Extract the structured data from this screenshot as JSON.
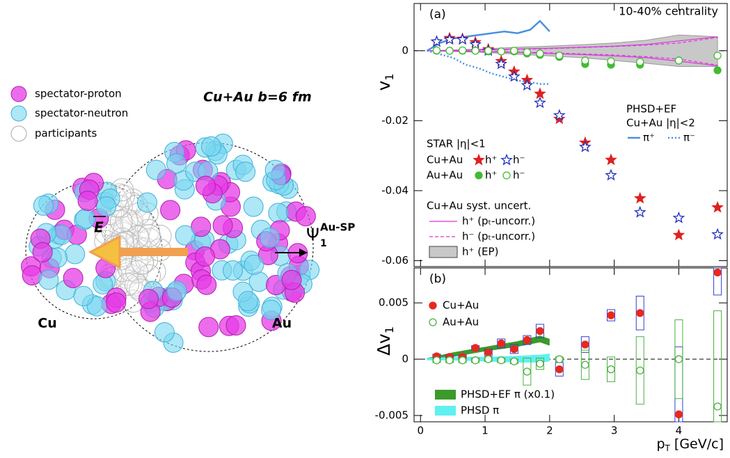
{
  "diagram": {
    "legend": [
      "spectator-proton",
      "spectator-neutron",
      "participants"
    ],
    "system": "Cu+Au  b=6 fm",
    "nuclei": [
      "Cu",
      "Au"
    ],
    "field": "E",
    "plane": [
      "Ψ",
      "1",
      "Au-SP"
    ]
  },
  "chart_data": [
    {
      "type": "scatter",
      "label": "(a)",
      "annotation": "10-40% centrality",
      "ylabel": [
        "v",
        "1"
      ],
      "xlim": [
        -0.1,
        4.75
      ],
      "ylim": [
        -0.0617,
        0.0135
      ],
      "xticks": [
        0,
        1,
        2,
        3,
        4
      ],
      "yticks": [
        -0.06,
        -0.04,
        -0.02,
        0
      ],
      "star": {
        "title": "STAR |η|<1",
        "x": [
          0.25,
          0.45,
          0.65,
          0.85,
          1.05,
          1.25,
          1.45,
          1.65,
          1.85,
          2.15,
          2.55,
          2.95,
          3.4,
          4.0,
          4.6
        ],
        "groups": [
          {
            "name": "Cu+Au",
            "series": [
              {
                "name": "h⁺",
                "color": "#e02020",
                "marker": "filled-star",
                "values": [
                  0.0026,
                  0.0036,
                  0.0034,
                  0.0024,
                  0.0004,
                  -0.003,
                  -0.006,
                  -0.0084,
                  -0.0123,
                  -0.0195,
                  -0.0263,
                  -0.0312,
                  -0.0422,
                  -0.0527,
                  -0.0448
                ]
              },
              {
                "name": "h⁻",
                "color": "#2030c0",
                "marker": "open-star",
                "values": [
                  0.0026,
                  0.0032,
                  0.0032,
                  0.0018,
                  0,
                  -0.0038,
                  -0.0074,
                  -0.0099,
                  -0.0149,
                  -0.0185,
                  -0.0275,
                  -0.0356,
                  -0.0462,
                  -0.0478,
                  -0.0525
                ]
              }
            ]
          },
          {
            "name": "Au+Au",
            "series": [
              {
                "name": "h⁺",
                "color": "#44bb33",
                "marker": "filled-circle",
                "values": [
                  0,
                  0,
                  0,
                  0,
                  -0.0002,
                  -0.0002,
                  -0.0002,
                  -0.0008,
                  -0.0012,
                  -0.0018,
                  -0.0038,
                  -0.004,
                  -0.004,
                  -0.0028,
                  -0.0056
                ]
              },
              {
                "name": "h⁻",
                "color": "#44bb33",
                "marker": "open-circle",
                "values": [
                  0.0001,
                  0,
                  0.0001,
                  0,
                  0,
                  -0.0002,
                  0,
                  -0.0004,
                  -0.0008,
                  -0.0014,
                  -0.0028,
                  -0.003,
                  -0.0032,
                  -0.0028,
                  -0.0014
                ]
              }
            ]
          }
        ]
      },
      "syst": {
        "title": "Cu+Au syst. uncert.",
        "x": [
          0.1,
          0.5,
          1,
          1.5,
          2,
          2.5,
          3,
          3.5,
          4,
          4.6
        ],
        "bands": [
          {
            "name": "h⁺ (pₜ-uncorr.)",
            "style": "solid",
            "color": "#dd33dd",
            "upper": [
              0,
              0.0001,
              0.0003,
              0.0005,
              0.0007,
              0.001,
              0.0013,
              0.0018,
              0.0028,
              0.004
            ],
            "lower": [
              0,
              -0.0001,
              -0.0003,
              -0.0005,
              -0.0008,
              -0.0011,
              -0.0015,
              -0.002,
              -0.003,
              -0.0043
            ]
          },
          {
            "name": "h⁻ (pₜ-uncorr.)",
            "style": "dashed",
            "color": "#dd33dd",
            "upper": [
              0,
              0.0001,
              0.0002,
              0.0004,
              0.0006,
              0.0009,
              0.0012,
              0.0016,
              0.0022,
              0.0038
            ],
            "lower": [
              0,
              -0.0001,
              -0.0002,
              -0.0004,
              -0.0006,
              -0.0009,
              -0.0012,
              -0.0017,
              -0.0024,
              -0.0041
            ]
          },
          {
            "name": "h⁺ (EP)",
            "style": "fill",
            "color": "#c8c8c8",
            "upper": [
              0,
              0.0002,
              0.0005,
              0.001,
              0.0013,
              0.0017,
              0.0022,
              0.003,
              0.0045,
              0.004
            ],
            "lower": [
              0,
              -0.0002,
              -0.0005,
              -0.001,
              -0.0015,
              -0.002,
              -0.0028,
              -0.0036,
              -0.0045,
              -0.0045
            ]
          }
        ]
      },
      "model": {
        "title": "PHSD+EF",
        "subtitle": "Cu+Au |η|<2",
        "x": [
          0.1,
          0.3,
          0.5,
          0.7,
          0.9,
          1.1,
          1.3,
          1.5,
          1.7,
          1.85,
          2.0
        ],
        "series": [
          {
            "name": "π⁺",
            "style": "solid",
            "color": "#4a90e0",
            "values": [
              0,
              0.0022,
              0.0035,
              0.004,
              0.0045,
              0.005,
              0.0055,
              0.005,
              0.006,
              0.0085,
              0.0055
            ]
          },
          {
            "name": "π⁻",
            "style": "dotted",
            "color": "#4a90e0",
            "values": [
              0,
              -0.001,
              -0.002,
              -0.004,
              -0.005,
              -0.0065,
              -0.0075,
              -0.0085,
              -0.009,
              -0.0095,
              -0.0095
            ]
          }
        ]
      }
    },
    {
      "type": "scatter",
      "label": "(b)",
      "ylabel": [
        "Δv",
        "1"
      ],
      "xlabel": [
        "p",
        "T",
        " [GeV/c]"
      ],
      "xlim": [
        -0.1,
        4.75
      ],
      "ylim": [
        -0.00556,
        0.0081
      ],
      "xticks": [
        0,
        1,
        2,
        3,
        4
      ],
      "yticks": [
        -0.005,
        0,
        0.005
      ],
      "x": [
        0.25,
        0.45,
        0.65,
        0.85,
        1.05,
        1.25,
        1.45,
        1.65,
        1.85,
        2.15,
        2.55,
        2.95,
        3.4,
        4.0,
        4.6
      ],
      "series": [
        {
          "name": "Cu+Au",
          "color": "#e8281e",
          "marker": "filled-circle",
          "box_color": "#3040d0",
          "values": [
            0.00025,
            0.0002,
            0.0002,
            0.001,
            0.0006,
            0.0014,
            0.0009,
            0.0017,
            0.0025,
            -0.0009,
            0.0013,
            0.0039,
            0.0041,
            -0.0049,
            0.0077
          ],
          "syst": [
            0.0002,
            0.0002,
            0.0002,
            0.0002,
            0.0003,
            0.0004,
            0.0004,
            0.0004,
            0.0006,
            0.0006,
            0.0007,
            0.0005,
            0.0015,
            0.006,
            0.002
          ]
        },
        {
          "name": "Au+Au",
          "color": "#4cb040",
          "marker": "open-circle",
          "box_color": "#4cb040",
          "values": [
            -0.0001,
            -0.0001,
            -0.0001,
            -0.0001,
            0,
            -0.0001,
            -0.0002,
            -0.0011,
            -0.0004,
            0,
            -0.0005,
            -0.0009,
            -0.001,
            0,
            -0.0042
          ],
          "syst": [
            0.0002,
            0.0002,
            0.0002,
            0.0002,
            0.0002,
            0.0002,
            0.0002,
            0.0012,
            0.0005,
            0.0002,
            0.0013,
            0.0011,
            0.003,
            0.0035,
            0.0085
          ]
        }
      ],
      "model": {
        "x": [
          0.1,
          0.5,
          1,
          1.5,
          1.85,
          2.0
        ],
        "bands": [
          {
            "name": "PHSD+EF π (x0.1)",
            "color": "#3a9a2a",
            "lower": [
              -0.0001,
              0.0002,
              0.0007,
              0.0011,
              0.0015,
              0.0012
            ],
            "upper": [
              0.0001,
              0.0006,
              0.0011,
              0.0016,
              0.0021,
              0.0018
            ]
          },
          {
            "name": "PHSD π",
            "color": "#60f0f0",
            "lower": [
              -0.0001,
              -0.0001,
              -0.0002,
              -0.0003,
              -0.0003,
              -0.0002
            ],
            "upper": [
              0.0001,
              0.0002,
              0.0002,
              0.0003,
              0.0004,
              0.0005
            ]
          }
        ]
      }
    }
  ]
}
